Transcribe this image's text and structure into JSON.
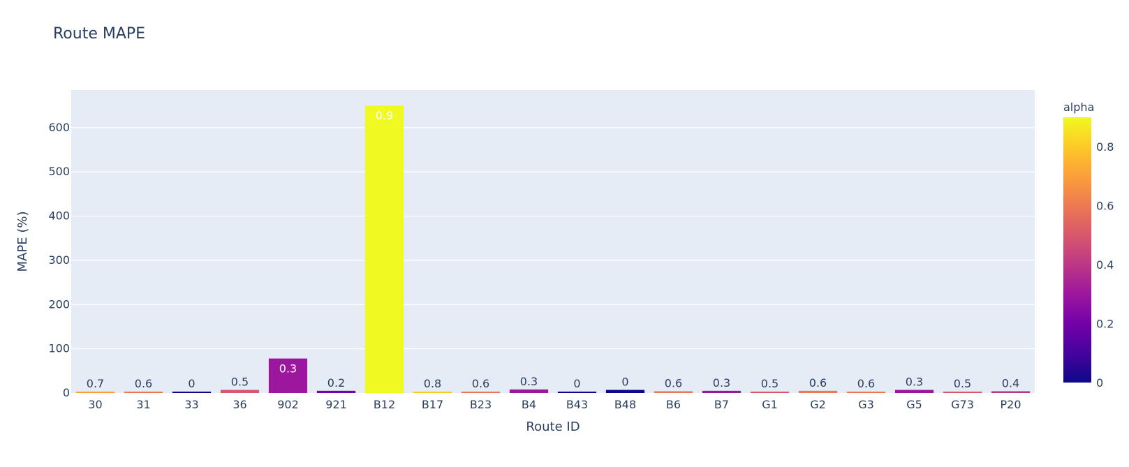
{
  "chart_data": {
    "type": "bar",
    "title": "Route MAPE",
    "xlabel": "Route ID",
    "ylabel": "MAPE (%)",
    "ylim": [
      0,
      685
    ],
    "yticks": [
      0,
      100,
      200,
      300,
      400,
      500,
      600
    ],
    "grid": true,
    "categories": [
      "30",
      "31",
      "33",
      "36",
      "902",
      "921",
      "B12",
      "B17",
      "B23",
      "B4",
      "B43",
      "B48",
      "B6",
      "B7",
      "G1",
      "G2",
      "G3",
      "G5",
      "G73",
      "P20"
    ],
    "values": [
      2,
      2,
      1,
      7,
      78,
      5,
      650,
      2,
      2,
      8,
      1,
      7,
      4,
      5,
      2,
      5,
      2,
      7,
      3,
      4
    ],
    "color_values": [
      0.7,
      0.6,
      0,
      0.5,
      0.3,
      0.2,
      0.9,
      0.8,
      0.6,
      0.3,
      0,
      0,
      0.6,
      0.3,
      0.5,
      0.6,
      0.6,
      0.3,
      0.5,
      0.4
    ],
    "data_labels": [
      "0.7",
      "0.6",
      "0",
      "0.5",
      "0.3",
      "0.2",
      "0.9",
      "0.8",
      "0.6",
      "0.3",
      "0",
      "0",
      "0.6",
      "0.3",
      "0.5",
      "0.6",
      "0.6",
      "0.3",
      "0.5",
      "0.4"
    ],
    "colorbar": {
      "title": "alpha",
      "range": [
        0,
        0.9
      ],
      "ticks": [
        0,
        0.2,
        0.4,
        0.6,
        0.8
      ],
      "tick_labels": [
        "0",
        "0.2",
        "0.4",
        "0.6",
        "0.8"
      ],
      "colorscale": [
        "#0d0887",
        "#46039f",
        "#7201a8",
        "#9c179e",
        "#bd3786",
        "#d8576b",
        "#ed7953",
        "#fb9f3a",
        "#fdca26",
        "#f0f921"
      ]
    }
  },
  "colors": {
    "plot_background": "#e5ecf6",
    "grid": "#ffffff",
    "text": "#2a3f5f"
  }
}
